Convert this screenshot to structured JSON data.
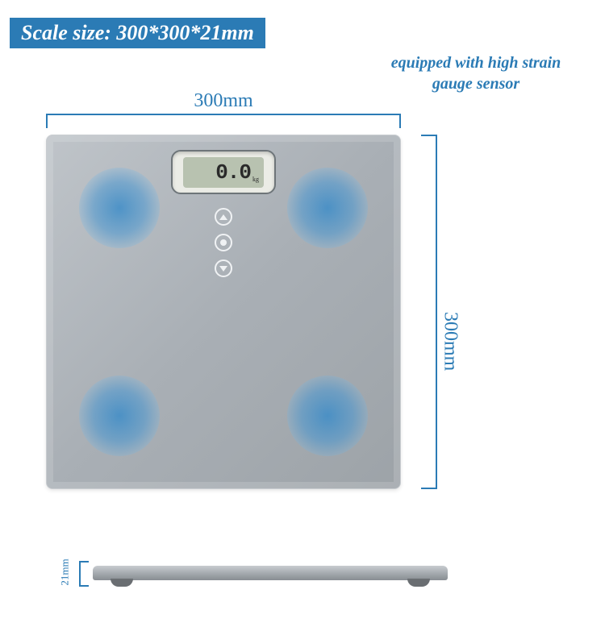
{
  "title": "Scale size: 300*300*21mm",
  "tagline": "equipped with high strain gauge sensor",
  "dimensions": {
    "width_label": "300mm",
    "height_label": "300mm",
    "thickness_label": "21mm"
  },
  "lcd": {
    "reading": "0.0",
    "unit": "kg"
  },
  "colors": {
    "primary": "#2b7bb5",
    "scale_body": "#a9afb5",
    "sensor_glow": "#4c96d2",
    "lcd_bg": "#b8c2b0",
    "background": "#ffffff"
  },
  "typography": {
    "title_fontsize": 26,
    "tagline_fontsize": 20,
    "dim_label_fontsize": 24,
    "thickness_fontsize": 13
  },
  "buttons": [
    "up",
    "set",
    "down"
  ],
  "sensor_positions": [
    "top-left",
    "top-right",
    "bottom-left",
    "bottom-right"
  ]
}
